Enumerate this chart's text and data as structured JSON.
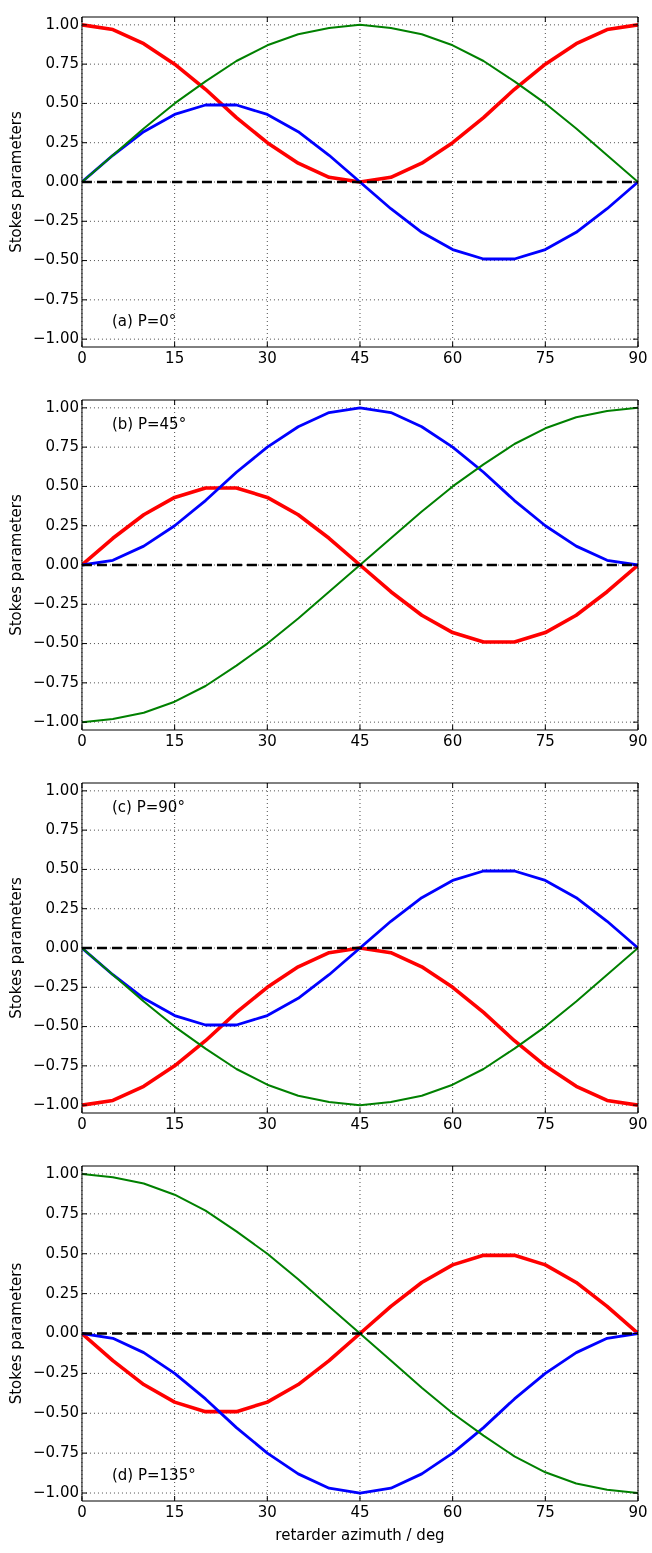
{
  "chart_data": [
    {
      "type": "line",
      "ylabel": "Stokes parameters",
      "annotations": [
        "(a) P=0°"
      ],
      "x": [
        0,
        5,
        10,
        15,
        20,
        25,
        30,
        35,
        40,
        45,
        50,
        55,
        60,
        65,
        70,
        75,
        80,
        85,
        90
      ],
      "xlim": [
        0,
        90
      ],
      "xticks": [
        0,
        15,
        30,
        45,
        60,
        75,
        90
      ],
      "ylim": [
        -1.05,
        1.05
      ],
      "yticks": [
        {
          "value": -1,
          "label": "−1.00"
        },
        {
          "value": -0.75,
          "label": "−0.75"
        },
        {
          "value": -0.5,
          "label": "−0.50"
        },
        {
          "value": -0.25,
          "label": "−0.25"
        },
        {
          "value": 0,
          "label": "0.00"
        },
        {
          "value": 0.25,
          "label": "0.25"
        },
        {
          "value": 0.5,
          "label": "0.50"
        },
        {
          "value": 0.75,
          "label": "0.75"
        },
        {
          "value": 1,
          "label": "1.00"
        }
      ],
      "grid": true,
      "line_style": "solid",
      "ref_lines": [
        {
          "axis": "y",
          "value": 0,
          "color": "#000000",
          "line_style": "dashed"
        }
      ],
      "series": [
        {
          "color": "#ff0000",
          "values": [
            1,
            0.97,
            0.88,
            0.75,
            0.59,
            0.41,
            0.25,
            0.12,
            0.03,
            0,
            0.03,
            0.12,
            0.25,
            0.41,
            0.59,
            0.75,
            0.88,
            0.97,
            1
          ]
        },
        {
          "color": "#0000ff",
          "values": [
            0,
            0.17,
            0.32,
            0.43,
            0.49,
            0.49,
            0.43,
            0.32,
            0.17,
            0,
            -0.17,
            -0.32,
            -0.43,
            -0.49,
            -0.49,
            -0.43,
            -0.32,
            -0.17,
            0
          ]
        },
        {
          "color": "#008000",
          "values": [
            0,
            0.17,
            0.34,
            0.5,
            0.64,
            0.77,
            0.87,
            0.94,
            0.98,
            1,
            0.98,
            0.94,
            0.87,
            0.77,
            0.64,
            0.5,
            0.34,
            0.17,
            0
          ]
        }
      ]
    },
    {
      "type": "line",
      "ylabel": "Stokes parameters",
      "annotations": [
        "(b) P=45°"
      ],
      "x": [
        0,
        5,
        10,
        15,
        20,
        25,
        30,
        35,
        40,
        45,
        50,
        55,
        60,
        65,
        70,
        75,
        80,
        85,
        90
      ],
      "xlim": [
        0,
        90
      ],
      "xticks": [
        0,
        15,
        30,
        45,
        60,
        75,
        90
      ],
      "ylim": [
        -1.05,
        1.05
      ],
      "yticks": [
        {
          "value": -1,
          "label": "−1.00"
        },
        {
          "value": -0.75,
          "label": "−0.75"
        },
        {
          "value": -0.5,
          "label": "−0.50"
        },
        {
          "value": -0.25,
          "label": "−0.25"
        },
        {
          "value": 0,
          "label": "0.00"
        },
        {
          "value": 0.25,
          "label": "0.25"
        },
        {
          "value": 0.5,
          "label": "0.50"
        },
        {
          "value": 0.75,
          "label": "0.75"
        },
        {
          "value": 1,
          "label": "1.00"
        }
      ],
      "grid": true,
      "line_style": "solid",
      "ref_lines": [
        {
          "axis": "y",
          "value": 0,
          "color": "#000000",
          "line_style": "dashed"
        }
      ],
      "series": [
        {
          "color": "#ff0000",
          "values": [
            0,
            0.17,
            0.32,
            0.43,
            0.49,
            0.49,
            0.43,
            0.32,
            0.17,
            0,
            -0.17,
            -0.32,
            -0.43,
            -0.49,
            -0.49,
            -0.43,
            -0.32,
            -0.17,
            0
          ]
        },
        {
          "color": "#0000ff",
          "values": [
            0,
            0.03,
            0.12,
            0.25,
            0.41,
            0.59,
            0.75,
            0.88,
            0.97,
            1,
            0.97,
            0.88,
            0.75,
            0.59,
            0.41,
            0.25,
            0.12,
            0.03,
            0
          ]
        },
        {
          "color": "#008000",
          "values": [
            -1,
            -0.98,
            -0.94,
            -0.87,
            -0.77,
            -0.64,
            -0.5,
            -0.34,
            -0.17,
            0,
            0.17,
            0.34,
            0.5,
            0.64,
            0.77,
            0.87,
            0.94,
            0.98,
            1
          ]
        }
      ]
    },
    {
      "type": "line",
      "ylabel": "Stokes parameters",
      "annotations": [
        "(c) P=90°"
      ],
      "x": [
        0,
        5,
        10,
        15,
        20,
        25,
        30,
        35,
        40,
        45,
        50,
        55,
        60,
        65,
        70,
        75,
        80,
        85,
        90
      ],
      "xlim": [
        0,
        90
      ],
      "xticks": [
        0,
        15,
        30,
        45,
        60,
        75,
        90
      ],
      "ylim": [
        -1.05,
        1.05
      ],
      "yticks": [
        {
          "value": -1,
          "label": "−1.00"
        },
        {
          "value": -0.75,
          "label": "−0.75"
        },
        {
          "value": -0.5,
          "label": "−0.50"
        },
        {
          "value": -0.25,
          "label": "−0.25"
        },
        {
          "value": 0,
          "label": "0.00"
        },
        {
          "value": 0.25,
          "label": "0.25"
        },
        {
          "value": 0.5,
          "label": "0.50"
        },
        {
          "value": 0.75,
          "label": "0.75"
        },
        {
          "value": 1,
          "label": "1.00"
        }
      ],
      "grid": true,
      "line_style": "solid",
      "ref_lines": [
        {
          "axis": "y",
          "value": 0,
          "color": "#000000",
          "line_style": "dashed"
        }
      ],
      "series": [
        {
          "color": "#ff0000",
          "values": [
            -1,
            -0.97,
            -0.88,
            -0.75,
            -0.59,
            -0.41,
            -0.25,
            -0.12,
            -0.03,
            0,
            -0.03,
            -0.12,
            -0.25,
            -0.41,
            -0.59,
            -0.75,
            -0.88,
            -0.97,
            -1
          ]
        },
        {
          "color": "#0000ff",
          "values": [
            0,
            -0.17,
            -0.32,
            -0.43,
            -0.49,
            -0.49,
            -0.43,
            -0.32,
            -0.17,
            0,
            0.17,
            0.32,
            0.43,
            0.49,
            0.49,
            0.43,
            0.32,
            0.17,
            0
          ]
        },
        {
          "color": "#008000",
          "values": [
            0,
            -0.17,
            -0.34,
            -0.5,
            -0.64,
            -0.77,
            -0.87,
            -0.94,
            -0.98,
            -1,
            -0.98,
            -0.94,
            -0.87,
            -0.77,
            -0.64,
            -0.5,
            -0.34,
            -0.17,
            0
          ]
        }
      ]
    },
    {
      "type": "line",
      "ylabel": "Stokes parameters",
      "xlabel": "retarder azimuth / deg",
      "annotations": [
        "(d) P=135°"
      ],
      "x": [
        0,
        5,
        10,
        15,
        20,
        25,
        30,
        35,
        40,
        45,
        50,
        55,
        60,
        65,
        70,
        75,
        80,
        85,
        90
      ],
      "xlim": [
        0,
        90
      ],
      "xticks": [
        0,
        15,
        30,
        45,
        60,
        75,
        90
      ],
      "ylim": [
        -1.05,
        1.05
      ],
      "yticks": [
        {
          "value": -1,
          "label": "−1.00"
        },
        {
          "value": -0.75,
          "label": "−0.75"
        },
        {
          "value": -0.5,
          "label": "−0.50"
        },
        {
          "value": -0.25,
          "label": "−0.25"
        },
        {
          "value": 0,
          "label": "0.00"
        },
        {
          "value": 0.25,
          "label": "0.25"
        },
        {
          "value": 0.5,
          "label": "0.50"
        },
        {
          "value": 0.75,
          "label": "0.75"
        },
        {
          "value": 1,
          "label": "1.00"
        }
      ],
      "grid": true,
      "line_style": "solid",
      "ref_lines": [
        {
          "axis": "y",
          "value": 0,
          "color": "#000000",
          "line_style": "dashed"
        }
      ],
      "series": [
        {
          "color": "#ff0000",
          "values": [
            0,
            -0.17,
            -0.32,
            -0.43,
            -0.49,
            -0.49,
            -0.43,
            -0.32,
            -0.17,
            0,
            0.17,
            0.32,
            0.43,
            0.49,
            0.49,
            0.43,
            0.32,
            0.17,
            0
          ]
        },
        {
          "color": "#0000ff",
          "values": [
            0,
            -0.03,
            -0.12,
            -0.25,
            -0.41,
            -0.59,
            -0.75,
            -0.88,
            -0.97,
            -1,
            -0.97,
            -0.88,
            -0.75,
            -0.59,
            -0.41,
            -0.25,
            -0.12,
            -0.03,
            0
          ]
        },
        {
          "color": "#008000",
          "values": [
            1,
            0.98,
            0.94,
            0.87,
            0.77,
            0.64,
            0.5,
            0.34,
            0.17,
            0,
            -0.17,
            -0.34,
            -0.5,
            -0.64,
            -0.77,
            -0.87,
            -0.94,
            -0.98,
            -1
          ]
        }
      ]
    }
  ]
}
